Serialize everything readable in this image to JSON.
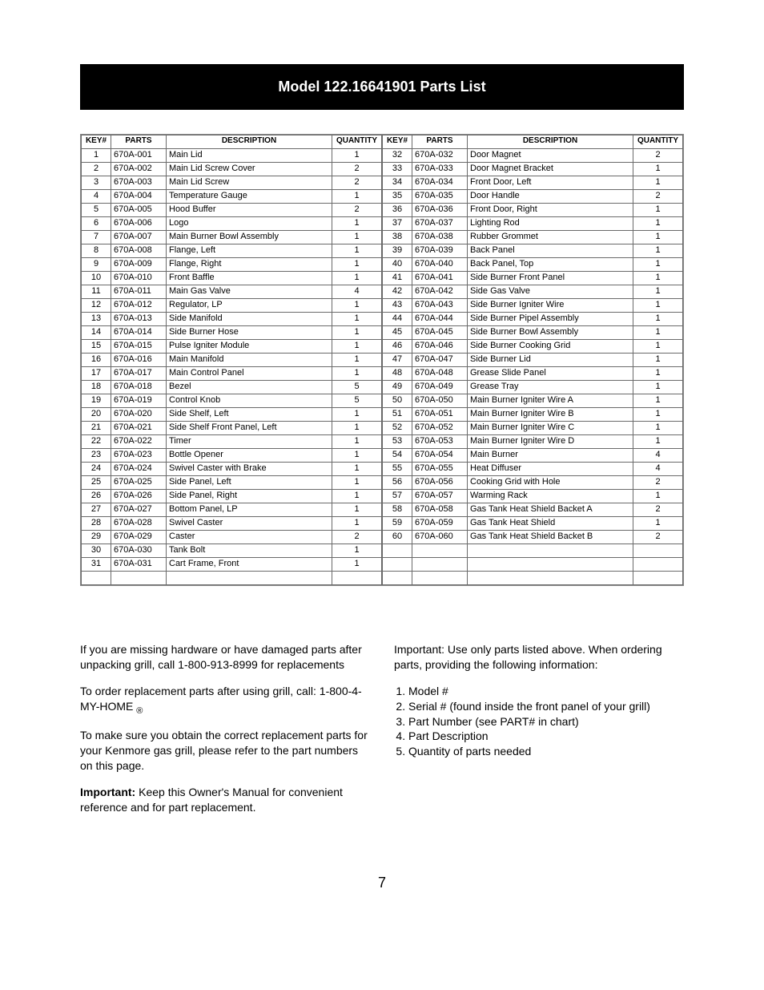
{
  "header": {
    "title": "Model  122.16641901 Parts  List"
  },
  "table": {
    "columns": [
      "KEY#",
      "PARTS",
      "DESCRIPTION",
      "QUANTITY"
    ],
    "left": [
      {
        "k": "1",
        "p": "670A-001",
        "d": "Main Lid",
        "q": "1"
      },
      {
        "k": "2",
        "p": "670A-002",
        "d": "Main Lid Screw Cover",
        "q": "2"
      },
      {
        "k": "3",
        "p": "670A-003",
        "d": "Main Lid Screw",
        "q": "2"
      },
      {
        "k": "4",
        "p": "670A-004",
        "d": "Temperature Gauge",
        "q": "1"
      },
      {
        "k": "5",
        "p": "670A-005",
        "d": "Hood Buffer",
        "q": "2"
      },
      {
        "k": "6",
        "p": "670A-006",
        "d": "Logo",
        "q": "1"
      },
      {
        "k": "7",
        "p": "670A-007",
        "d": "Main Burner Bowl Assembly",
        "q": "1"
      },
      {
        "k": "8",
        "p": "670A-008",
        "d": "Flange,  Left",
        "q": "1"
      },
      {
        "k": "9",
        "p": "670A-009",
        "d": "Flange, Right",
        "q": "1"
      },
      {
        "k": "10",
        "p": "670A-010",
        "d": "Front Baffle",
        "q": "1"
      },
      {
        "k": "11",
        "p": "670A-011",
        "d": "Main Gas Valve",
        "q": "4"
      },
      {
        "k": "12",
        "p": "670A-012",
        "d": "Regulator, LP",
        "q": "1"
      },
      {
        "k": "13",
        "p": "670A-013",
        "d": "Side Manifold",
        "q": "1"
      },
      {
        "k": "14",
        "p": "670A-014",
        "d": "Side Burner Hose",
        "q": "1"
      },
      {
        "k": "15",
        "p": "670A-015",
        "d": "Pulse Igniter Module",
        "q": "1"
      },
      {
        "k": "16",
        "p": "670A-016",
        "d": "Main Manifold",
        "q": "1"
      },
      {
        "k": "17",
        "p": "670A-017",
        "d": "Main Control Panel",
        "q": "1"
      },
      {
        "k": "18",
        "p": "670A-018",
        "d": "Bezel",
        "q": "5"
      },
      {
        "k": "19",
        "p": "670A-019",
        "d": "Control Knob",
        "q": "5"
      },
      {
        "k": "20",
        "p": "670A-020",
        "d": "Side Shelf, Left",
        "q": "1"
      },
      {
        "k": "21",
        "p": "670A-021",
        "d": "Side Shelf Front Panel,  Left",
        "q": "1"
      },
      {
        "k": "22",
        "p": "670A-022",
        "d": "Timer",
        "q": "1"
      },
      {
        "k": "23",
        "p": "670A-023",
        "d": "Bottle Opener",
        "q": "1"
      },
      {
        "k": "24",
        "p": "670A-024",
        "d": "Swivel Caster with Brake",
        "q": "1"
      },
      {
        "k": "25",
        "p": "670A-025",
        "d": "Side Panel, Left",
        "q": "1"
      },
      {
        "k": "26",
        "p": "670A-026",
        "d": "Side Panel, Right",
        "q": "1"
      },
      {
        "k": "27",
        "p": "670A-027",
        "d": "Bottom Panel, LP",
        "q": "1"
      },
      {
        "k": "28",
        "p": "670A-028",
        "d": "Swivel Caster",
        "q": "1"
      },
      {
        "k": "29",
        "p": "670A-029",
        "d": "Caster",
        "q": "2"
      },
      {
        "k": "30",
        "p": "670A-030",
        "d": "Tank Bolt",
        "q": "1"
      },
      {
        "k": "31",
        "p": "670A-031",
        "d": "Cart Frame, Front",
        "q": "1"
      },
      {
        "k": "",
        "p": "",
        "d": "",
        "q": ""
      }
    ],
    "right": [
      {
        "k": "32",
        "p": "670A-032",
        "d": "Door Magnet",
        "q": "2"
      },
      {
        "k": "33",
        "p": "670A-033",
        "d": "Door Magnet Bracket",
        "q": "1"
      },
      {
        "k": "34",
        "p": "670A-034",
        "d": "Front Door, Left",
        "q": "1"
      },
      {
        "k": "35",
        "p": "670A-035",
        "d": " Door Handle",
        "q": "2"
      },
      {
        "k": "36",
        "p": "670A-036",
        "d": "Front Door, Right",
        "q": "1"
      },
      {
        "k": "37",
        "p": "670A-037",
        "d": "Lighting Rod",
        "q": "1"
      },
      {
        "k": "38",
        "p": "670A-038",
        "d": "Rubber Grommet",
        "q": "1"
      },
      {
        "k": "39",
        "p": "670A-039",
        "d": "Back Panel",
        "q": "1"
      },
      {
        "k": "40",
        "p": "670A-040",
        "d": "Back Panel, Top",
        "q": "1"
      },
      {
        "k": "41",
        "p": "670A-041",
        "d": "Side Burner Front Panel",
        "q": "1"
      },
      {
        "k": "42",
        "p": "670A-042",
        "d": "Side Gas Valve",
        "q": "1"
      },
      {
        "k": "43",
        "p": "670A-043",
        "d": "Side Burner Igniter Wire",
        "q": "1"
      },
      {
        "k": "44",
        "p": "670A-044",
        "d": "Side Burner Pipel Assembly",
        "q": "1"
      },
      {
        "k": "45",
        "p": "670A-045",
        "d": "Side Burner Bowl Assembly",
        "q": "1"
      },
      {
        "k": "46",
        "p": "670A-046",
        "d": "Side Burner Cooking Grid",
        "q": "1"
      },
      {
        "k": "47",
        "p": "670A-047",
        "d": "Side Burner Lid",
        "q": "1"
      },
      {
        "k": "48",
        "p": "670A-048",
        "d": "Grease Slide Panel",
        "q": "1"
      },
      {
        "k": "49",
        "p": "670A-049",
        "d": "Grease Tray",
        "q": "1"
      },
      {
        "k": "50",
        "p": "670A-050",
        "d": "Main Burner Igniter Wire A",
        "q": "1"
      },
      {
        "k": "51",
        "p": "670A-051",
        "d": "Main Burner Igniter Wire B",
        "q": "1"
      },
      {
        "k": "52",
        "p": "670A-052",
        "d": "Main Burner Igniter Wire C",
        "q": "1"
      },
      {
        "k": "53",
        "p": "670A-053",
        "d": "Main Burner Igniter Wire D",
        "q": "1"
      },
      {
        "k": "54",
        "p": "670A-054",
        "d": "Main Burner",
        "q": "4"
      },
      {
        "k": "55",
        "p": "670A-055",
        "d": "Heat Diffuser",
        "q": "4"
      },
      {
        "k": "56",
        "p": "670A-056",
        "d": "Cooking Grid with Hole",
        "q": "2"
      },
      {
        "k": "57",
        "p": "670A-057",
        "d": "Warming Rack",
        "q": "1"
      },
      {
        "k": "58",
        "p": "670A-058",
        "d": "Gas Tank Heat Shield Backet A",
        "q": "2"
      },
      {
        "k": "59",
        "p": "670A-059",
        "d": "Gas Tank Heat Shield",
        "q": "1"
      },
      {
        "k": "60",
        "p": "670A-060",
        "d": "Gas Tank Heat Shield Backet B",
        "q": "2"
      },
      {
        "k": "",
        "p": "",
        "d": "",
        "q": ""
      },
      {
        "k": "",
        "p": "",
        "d": "",
        "q": ""
      },
      {
        "k": "",
        "p": "",
        "d": "",
        "q": ""
      }
    ]
  },
  "body": {
    "l1": "If you are missing hardware or have damaged parts after unpacking grill, call 1-800-913-8999 for replacements",
    "l2a": "To order replacement parts after using grill, call: 1-800-4-MY-HOME",
    "l2b": "®",
    "l3": "To make sure you obtain the correct replacement parts for your Kenmore gas grill, please refer to the part numbers on this page.",
    "l4_strong": "Important:",
    "l4_rest": " Keep this Owner's Manual for convenient reference and for part replacement.",
    "r1": "Important: Use only parts listed above.  When ordering parts, providing the following information:",
    "req1": "Model #",
    "req2": "Serial # (found inside the front panel of your grill)",
    "req3": "Part Number (see PART# in chart)",
    "req4": "Part Description",
    "req5": "Quantity of parts needed"
  },
  "pagenum": "7"
}
